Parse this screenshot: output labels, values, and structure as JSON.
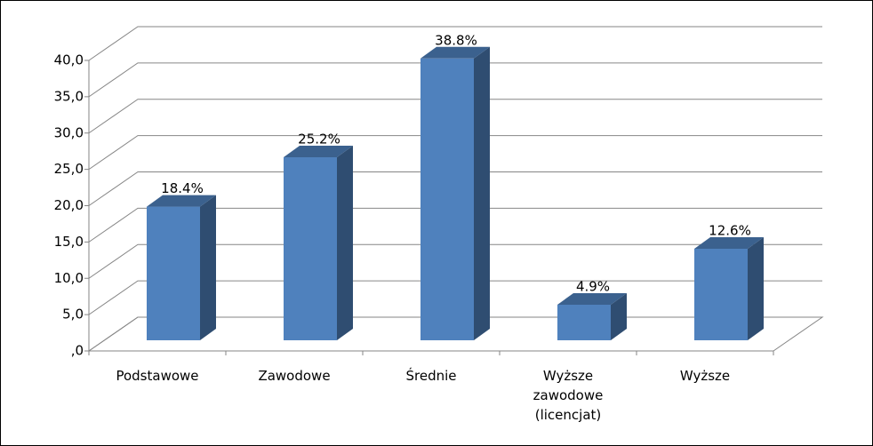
{
  "chart_data": {
    "type": "bar3d",
    "categories": [
      "Podstawowe",
      "Zawodowe",
      "Średnie",
      "Wyższe zawodowe (licencjat)",
      "Wyższe"
    ],
    "values": [
      18.4,
      25.2,
      38.8,
      4.9,
      12.6
    ],
    "value_labels": [
      "18.4%",
      "25.2%",
      "38.8%",
      "4.9%",
      "12.6%"
    ],
    "color": "#4f81bd",
    "ylim": [
      0,
      40
    ],
    "yticks": [
      {
        "value": 0,
        "label": ",0"
      },
      {
        "value": 5,
        "label": "5,0"
      },
      {
        "value": 10,
        "label": "10,0"
      },
      {
        "value": 15,
        "label": "15,0"
      },
      {
        "value": 20,
        "label": "20,0"
      },
      {
        "value": 25,
        "label": "25,0"
      },
      {
        "value": 30,
        "label": "30,0"
      },
      {
        "value": 35,
        "label": "35,0"
      },
      {
        "value": 40,
        "label": "40,0"
      }
    ],
    "grid": true
  }
}
